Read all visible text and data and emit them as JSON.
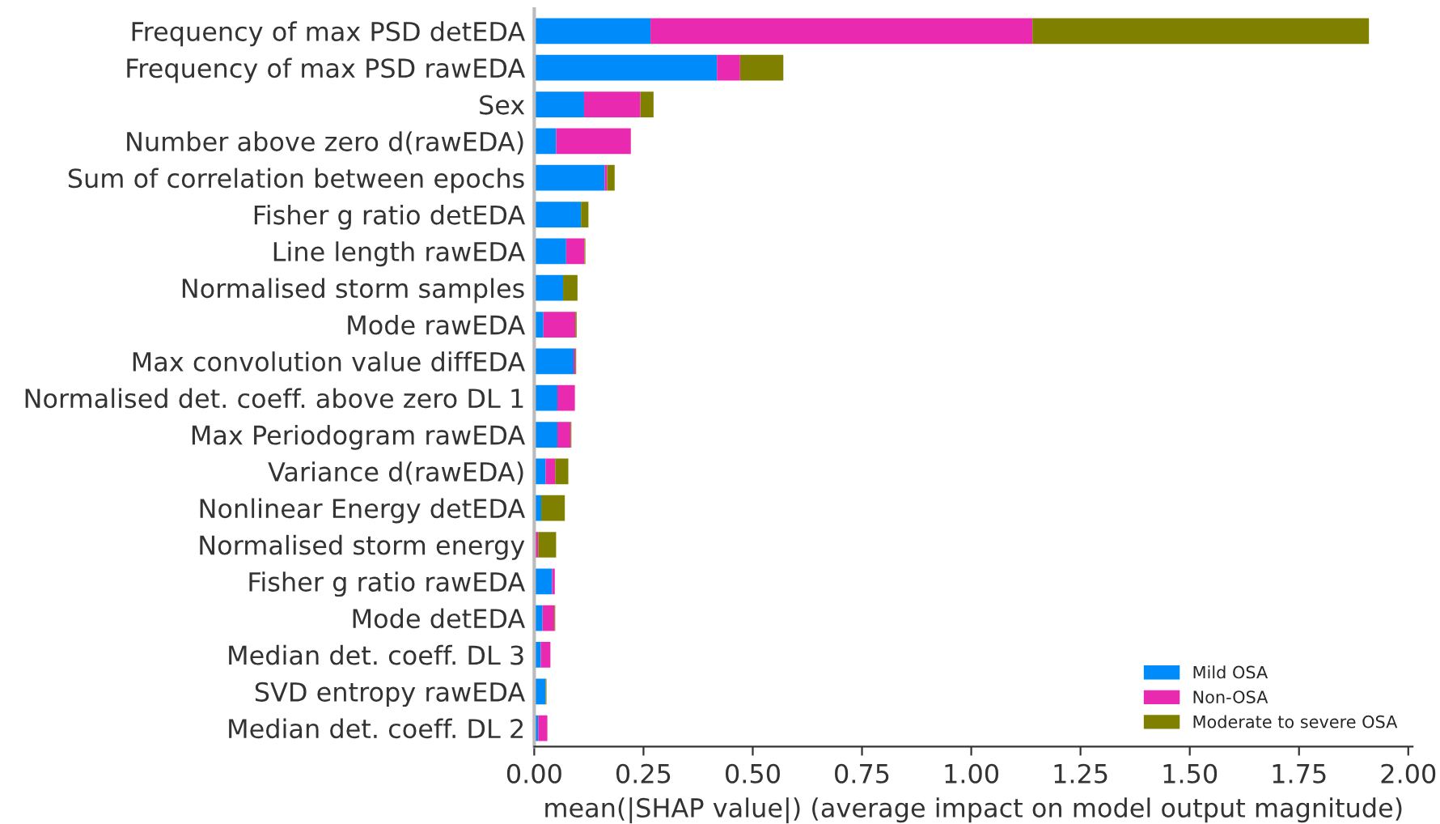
{
  "chart_data": {
    "type": "bar",
    "orientation": "horizontal",
    "stacked": true,
    "categories": [
      "Frequency of max PSD detEDA",
      "Frequency of max PSD rawEDA",
      "Sex",
      "Number above zero d(rawEDA)",
      "Sum of correlation between epochs",
      "Fisher g ratio detEDA",
      "Line length rawEDA",
      "Normalised storm samples",
      "Mode rawEDA",
      "Max convolution value diffEDA",
      "Normalised det. coeff. above zero DL 1",
      "Max Periodogram rawEDA",
      "Variance d(rawEDA)",
      "Nonlinear Energy detEDA",
      "Normalised storm energy",
      "Fisher g ratio rawEDA",
      "Mode detEDA",
      "Median det. coeff. DL 3",
      "SVD entropy rawEDA",
      "Median det. coeff. DL 2"
    ],
    "series": [
      {
        "name": "Mild OSA",
        "color": "#008bfb",
        "values": [
          0.266,
          0.418,
          0.114,
          0.05,
          0.161,
          0.107,
          0.073,
          0.066,
          0.021,
          0.09,
          0.053,
          0.053,
          0.026,
          0.016,
          null,
          0.041,
          0.019,
          0.015,
          0.026,
          0.009
        ]
      },
      {
        "name": "Non-OSA",
        "color": "#e92ab0",
        "values": [
          0.874,
          0.053,
          0.129,
          0.171,
          0.006,
          0,
          0.042,
          0,
          0.073,
          0.004,
          0.04,
          0.03,
          0.022,
          0,
          0.009,
          0.006,
          0.027,
          0.022,
          0,
          0.021
        ]
      },
      {
        "name": "Moderate to severe OSA",
        "color": "#808000",
        "values": [
          0.77,
          0.099,
          0.03,
          0,
          0.017,
          0.017,
          0.002,
          0.033,
          0.003,
          0.002,
          0,
          0.002,
          0.03,
          0.054,
          0.041,
          0,
          0.002,
          0,
          0.002,
          0
        ]
      }
    ],
    "xlabel": "mean(|SHAP value|) (average impact on model output magnitude)",
    "xlim": [
      0,
      2.01
    ],
    "xticks": [
      {
        "value": 0,
        "label": "0.00"
      },
      {
        "value": 0.25,
        "label": "0.25"
      },
      {
        "value": 0.5,
        "label": "0.50"
      },
      {
        "value": 0.75,
        "label": "0.75"
      },
      {
        "value": 1.0,
        "label": "1.00"
      },
      {
        "value": 1.25,
        "label": "1.25"
      },
      {
        "value": 1.5,
        "label": "1.50"
      },
      {
        "value": 1.75,
        "label": "1.75"
      },
      {
        "value": 2.0,
        "label": "2.00"
      }
    ],
    "legend": "bottom right",
    "grid": false
  }
}
